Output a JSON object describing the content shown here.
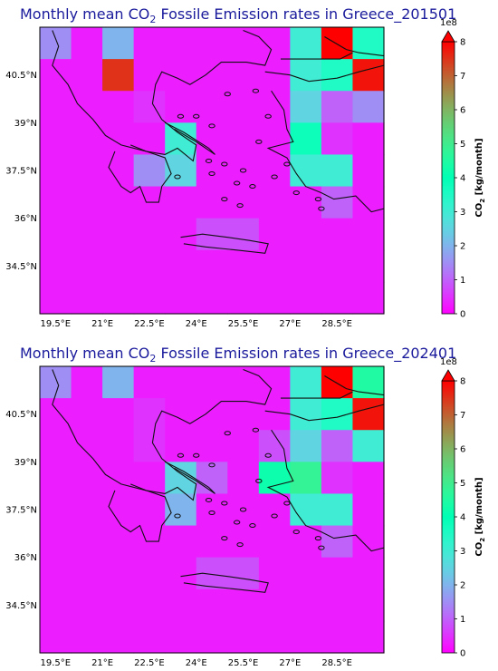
{
  "colorbar_max": 8,
  "colorbar_ticks": [
    "0",
    "1",
    "2",
    "3",
    "4",
    "5",
    "6",
    "7",
    "8"
  ],
  "colorbar_exponent": "1e8",
  "colorbar_label_pre": "CO",
  "colorbar_label_sub": "2",
  "colorbar_label_post": " [kg/month]",
  "xticks": [
    "19.5°E",
    "21°E",
    "22.5°E",
    "24°E",
    "25.5°E",
    "27°E",
    "28.5°E"
  ],
  "yticks": [
    "40.5°N",
    "39°N",
    "37.5°N",
    "36°N",
    "34.5°N"
  ],
  "chart_data": [
    {
      "type": "heatmap",
      "title_pre": "Monthly mean CO",
      "title_sub": "2",
      "title_post": " Fossile Emission rates in Greece_201501",
      "grid_lon_start": 19.0,
      "grid_lat_top": 42.0,
      "cell_size_deg": 1.0,
      "values_1e8": [
        [
          1.5,
          0.3,
          2.0,
          0.3,
          0.3,
          0.3,
          0.3,
          0.3,
          3.0,
          8.0,
          3.5
        ],
        [
          0.3,
          0.3,
          7.5,
          0.3,
          0.3,
          0.3,
          0.3,
          0.3,
          3.0,
          3.5,
          7.8
        ],
        [
          0.3,
          0.3,
          0.3,
          0.5,
          0.3,
          0.3,
          0.3,
          0.3,
          2.5,
          1.0,
          1.5
        ],
        [
          0.3,
          0.3,
          0.3,
          0.3,
          3.0,
          0.3,
          0.3,
          0.3,
          3.8,
          0.5,
          0.3
        ],
        [
          0.3,
          0.3,
          0.3,
          1.5,
          2.5,
          0.3,
          0.3,
          0.3,
          3.0,
          3.0,
          0.3
        ],
        [
          0.3,
          0.3,
          0.3,
          0.3,
          0.3,
          0.3,
          0.3,
          0.3,
          0.3,
          1.0,
          0.3
        ],
        [
          0.3,
          0.3,
          0.3,
          0.3,
          0.3,
          0.8,
          0.8,
          0.3,
          0.3,
          0.3,
          0.3
        ],
        [
          0.3,
          0.3,
          0.3,
          0.3,
          0.3,
          0.3,
          0.3,
          0.3,
          0.3,
          0.3,
          0.3
        ],
        [
          0.3,
          0.3,
          0.3,
          0.3,
          0.3,
          0.3,
          0.3,
          0.3,
          0.3,
          0.3,
          0.3
        ]
      ]
    },
    {
      "type": "heatmap",
      "title_pre": "Monthly mean CO",
      "title_sub": "2",
      "title_post": " Fossile Emission rates in Greece_202401",
      "grid_lon_start": 19.0,
      "grid_lat_top": 42.0,
      "cell_size_deg": 1.0,
      "values_1e8": [
        [
          1.5,
          0.3,
          2.0,
          0.3,
          0.3,
          0.3,
          0.3,
          0.3,
          3.0,
          8.0,
          4.5
        ],
        [
          0.3,
          0.3,
          0.3,
          0.5,
          0.3,
          0.3,
          0.3,
          0.3,
          3.0,
          3.5,
          7.8
        ],
        [
          0.3,
          0.3,
          0.3,
          0.5,
          0.3,
          0.3,
          0.3,
          0.8,
          2.5,
          1.0,
          3.0
        ],
        [
          0.3,
          0.3,
          0.3,
          0.3,
          2.5,
          1.0,
          0.3,
          4.2,
          4.8,
          0.5,
          0.3
        ],
        [
          0.3,
          0.3,
          0.3,
          0.3,
          2.0,
          0.3,
          0.3,
          0.3,
          3.0,
          3.0,
          0.3
        ],
        [
          0.3,
          0.3,
          0.3,
          0.3,
          0.3,
          0.3,
          0.3,
          0.3,
          0.3,
          1.0,
          0.3
        ],
        [
          0.3,
          0.3,
          0.3,
          0.3,
          0.3,
          0.8,
          0.8,
          0.3,
          0.3,
          0.3,
          0.3
        ],
        [
          0.3,
          0.3,
          0.3,
          0.3,
          0.3,
          0.3,
          0.3,
          0.3,
          0.3,
          0.3,
          0.3
        ],
        [
          0.3,
          0.3,
          0.3,
          0.3,
          0.3,
          0.3,
          0.3,
          0.3,
          0.3,
          0.3,
          0.3
        ]
      ]
    }
  ]
}
